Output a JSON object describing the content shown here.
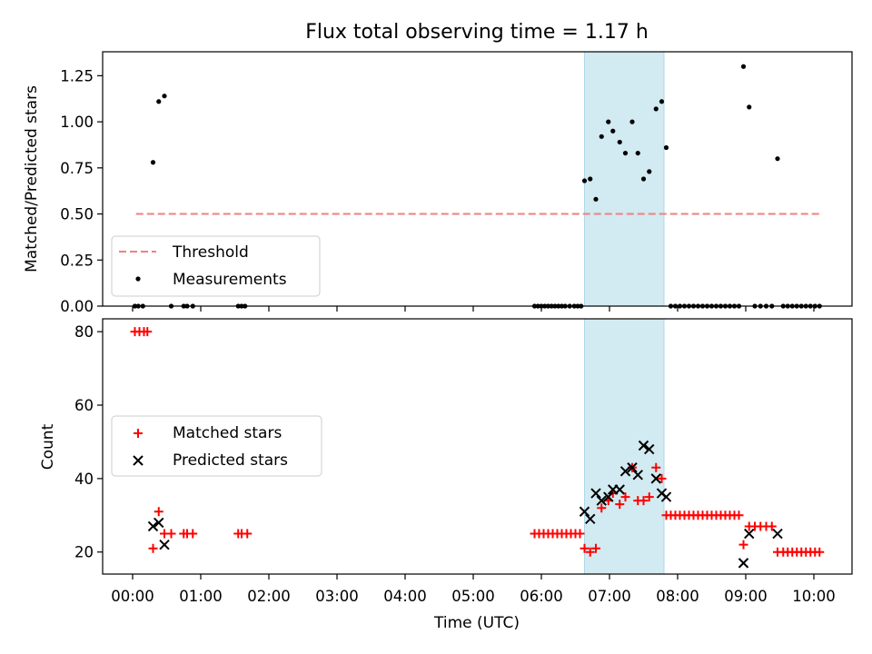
{
  "chart_data": {
    "type": "scatter",
    "title": "Flux total observing time = 1.17 h",
    "xlabel": "Time (UTC)",
    "x_tick_labels": [
      "00:00",
      "01:00",
      "02:00",
      "03:00",
      "04:00",
      "05:00",
      "06:00",
      "07:00",
      "08:00",
      "09:00",
      "10:00"
    ],
    "highlight_span": [
      "06:38",
      "07:48"
    ],
    "highlight_color": "#add8e6",
    "panels": [
      {
        "ylabel": "Matched/Predicted stars",
        "ylim": [
          0,
          1.38
        ],
        "yticks": [
          "0.00",
          "0.25",
          "0.50",
          "0.75",
          "1.00",
          "1.25"
        ],
        "threshold": {
          "name": "Threshold",
          "value": 0.5,
          "x_range": [
            "00:03",
            "10:05"
          ],
          "color": "#f08080"
        },
        "legend": {
          "position": "lower-left",
          "entries": [
            "Threshold",
            "Measurements"
          ]
        },
        "series": [
          {
            "name": "Measurements",
            "color": "#000000",
            "points": [
              [
                "00:02",
                0
              ],
              [
                "00:05",
                0
              ],
              [
                "00:09",
                0
              ],
              [
                "00:18",
                0.78
              ],
              [
                "00:23",
                1.11
              ],
              [
                "00:28",
                1.14
              ],
              [
                "00:34",
                0
              ],
              [
                "00:45",
                0
              ],
              [
                "00:48",
                0
              ],
              [
                "00:53",
                0
              ],
              [
                "01:33",
                0
              ],
              [
                "01:36",
                0
              ],
              [
                "01:39",
                0
              ],
              [
                "05:54",
                0
              ],
              [
                "05:57",
                0
              ],
              [
                "06:00",
                0
              ],
              [
                "06:03",
                0
              ],
              [
                "06:06",
                0
              ],
              [
                "06:09",
                0
              ],
              [
                "06:12",
                0
              ],
              [
                "06:15",
                0
              ],
              [
                "06:18",
                0
              ],
              [
                "06:21",
                0
              ],
              [
                "06:25",
                0
              ],
              [
                "06:29",
                0
              ],
              [
                "06:32",
                0
              ],
              [
                "06:35",
                0
              ],
              [
                "06:38",
                0.68
              ],
              [
                "06:43",
                0.69
              ],
              [
                "06:48",
                0.58
              ],
              [
                "06:53",
                0.92
              ],
              [
                "06:59",
                1.0
              ],
              [
                "07:03",
                0.95
              ],
              [
                "07:09",
                0.89
              ],
              [
                "07:14",
                0.83
              ],
              [
                "07:20",
                1.0
              ],
              [
                "07:25",
                0.83
              ],
              [
                "07:30",
                0.69
              ],
              [
                "07:35",
                0.73
              ],
              [
                "07:41",
                1.07
              ],
              [
                "07:46",
                1.11
              ],
              [
                "07:50",
                0.86
              ],
              [
                "07:54",
                0
              ],
              [
                "07:58",
                0
              ],
              [
                "08:02",
                0
              ],
              [
                "08:06",
                0
              ],
              [
                "08:10",
                0
              ],
              [
                "08:14",
                0
              ],
              [
                "08:18",
                0
              ],
              [
                "08:22",
                0
              ],
              [
                "08:26",
                0
              ],
              [
                "08:30",
                0
              ],
              [
                "08:34",
                0
              ],
              [
                "08:38",
                0
              ],
              [
                "08:42",
                0
              ],
              [
                "08:46",
                0
              ],
              [
                "08:50",
                0
              ],
              [
                "08:54",
                0
              ],
              [
                "08:58",
                1.3
              ],
              [
                "09:03",
                1.08
              ],
              [
                "09:08",
                0
              ],
              [
                "09:13",
                0
              ],
              [
                "09:18",
                0
              ],
              [
                "09:23",
                0
              ],
              [
                "09:28",
                0.8
              ],
              [
                "09:33",
                0
              ],
              [
                "09:37",
                0
              ],
              [
                "09:41",
                0
              ],
              [
                "09:45",
                0
              ],
              [
                "09:49",
                0
              ],
              [
                "09:53",
                0
              ],
              [
                "09:57",
                0
              ],
              [
                "10:01",
                0
              ],
              [
                "10:05",
                0
              ]
            ]
          }
        ]
      },
      {
        "ylabel": "Count",
        "ylim": [
          14,
          83.5
        ],
        "yticks": [
          "20",
          "40",
          "60",
          "80"
        ],
        "legend": {
          "position": "center-left",
          "entries": [
            "Matched stars",
            "Predicted stars"
          ]
        },
        "series": [
          {
            "name": "Matched stars",
            "marker": "plus",
            "color": "#ff0000",
            "points": [
              [
                "00:02",
                80
              ],
              [
                "00:06",
                80
              ],
              [
                "00:10",
                80
              ],
              [
                "00:13",
                80
              ],
              [
                "00:18",
                21
              ],
              [
                "00:23",
                31
              ],
              [
                "00:28",
                25
              ],
              [
                "00:34",
                25
              ],
              [
                "00:45",
                25
              ],
              [
                "00:48",
                25
              ],
              [
                "00:53",
                25
              ],
              [
                "01:33",
                25
              ],
              [
                "01:36",
                25
              ],
              [
                "01:41",
                25
              ],
              [
                "05:54",
                25
              ],
              [
                "05:58",
                25
              ],
              [
                "06:02",
                25
              ],
              [
                "06:06",
                25
              ],
              [
                "06:10",
                25
              ],
              [
                "06:14",
                25
              ],
              [
                "06:18",
                25
              ],
              [
                "06:22",
                25
              ],
              [
                "06:26",
                25
              ],
              [
                "06:30",
                25
              ],
              [
                "06:34",
                25
              ],
              [
                "06:38",
                21
              ],
              [
                "06:43",
                20
              ],
              [
                "06:48",
                21
              ],
              [
                "06:53",
                32
              ],
              [
                "06:59",
                34
              ],
              [
                "07:03",
                36
              ],
              [
                "07:09",
                33
              ],
              [
                "07:14",
                35
              ],
              [
                "07:20",
                43
              ],
              [
                "07:25",
                34
              ],
              [
                "07:30",
                34
              ],
              [
                "07:35",
                35
              ],
              [
                "07:41",
                43
              ],
              [
                "07:46",
                40
              ],
              [
                "07:50",
                30
              ],
              [
                "07:54",
                30
              ],
              [
                "07:58",
                30
              ],
              [
                "08:02",
                30
              ],
              [
                "08:06",
                30
              ],
              [
                "08:10",
                30
              ],
              [
                "08:14",
                30
              ],
              [
                "08:18",
                30
              ],
              [
                "08:22",
                30
              ],
              [
                "08:26",
                30
              ],
              [
                "08:30",
                30
              ],
              [
                "08:34",
                30
              ],
              [
                "08:38",
                30
              ],
              [
                "08:42",
                30
              ],
              [
                "08:46",
                30
              ],
              [
                "08:50",
                30
              ],
              [
                "08:54",
                30
              ],
              [
                "08:58",
                22
              ],
              [
                "09:03",
                27
              ],
              [
                "09:08",
                27
              ],
              [
                "09:13",
                27
              ],
              [
                "09:18",
                27
              ],
              [
                "09:23",
                27
              ],
              [
                "09:28",
                20
              ],
              [
                "09:33",
                20
              ],
              [
                "09:37",
                20
              ],
              [
                "09:41",
                20
              ],
              [
                "09:45",
                20
              ],
              [
                "09:49",
                20
              ],
              [
                "09:53",
                20
              ],
              [
                "09:57",
                20
              ],
              [
                "10:01",
                20
              ],
              [
                "10:05",
                20
              ]
            ]
          },
          {
            "name": "Predicted stars",
            "marker": "x",
            "color": "#000000",
            "points": [
              [
                "00:18",
                27
              ],
              [
                "00:23",
                28
              ],
              [
                "00:28",
                22
              ],
              [
                "06:38",
                31
              ],
              [
                "06:43",
                29
              ],
              [
                "06:48",
                36
              ],
              [
                "06:53",
                34
              ],
              [
                "06:59",
                35
              ],
              [
                "07:03",
                37
              ],
              [
                "07:09",
                37
              ],
              [
                "07:14",
                42
              ],
              [
                "07:20",
                43
              ],
              [
                "07:25",
                41
              ],
              [
                "07:30",
                49
              ],
              [
                "07:35",
                48
              ],
              [
                "07:41",
                40
              ],
              [
                "07:46",
                36
              ],
              [
                "07:50",
                35
              ],
              [
                "08:58",
                17
              ],
              [
                "09:03",
                25
              ],
              [
                "09:28",
                25
              ]
            ]
          }
        ]
      }
    ]
  }
}
